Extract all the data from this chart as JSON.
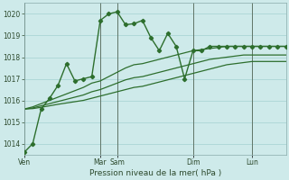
{
  "background_color": "#ceeaea",
  "grid_color": "#b0d8d8",
  "line_color": "#2d6e2d",
  "xlabel": "Pression niveau de la mer( hPa )",
  "ylim": [
    1013.5,
    1020.5
  ],
  "yticks": [
    1014,
    1015,
    1016,
    1017,
    1018,
    1019,
    1020
  ],
  "day_labels": [
    "Ven",
    "Mar",
    "Sam",
    "Dim",
    "Lun"
  ],
  "day_positions": [
    0,
    9,
    11,
    20,
    27
  ],
  "n_points": 32,
  "series": [
    [
      1013.6,
      1014.0,
      1015.6,
      1016.1,
      1016.7,
      1017.7,
      1016.9,
      1017.0,
      1017.1,
      1019.7,
      1020.0,
      1020.1,
      1019.5,
      1019.55,
      1019.7,
      1018.9,
      1018.3,
      1019.1,
      1018.5,
      1017.0,
      1018.3,
      1018.3,
      1018.5,
      1018.5,
      1018.5,
      1018.5,
      1018.5,
      1018.5,
      1018.5,
      1018.5,
      1018.5,
      1018.5
    ],
    [
      1015.6,
      1015.7,
      1015.85,
      1016.0,
      1016.15,
      1016.3,
      1016.45,
      1016.6,
      1016.8,
      1016.9,
      1017.1,
      1017.3,
      1017.5,
      1017.65,
      1017.7,
      1017.8,
      1017.9,
      1018.0,
      1018.1,
      1018.2,
      1018.3,
      1018.35,
      1018.4,
      1018.45,
      1018.5,
      1018.5,
      1018.5,
      1018.5,
      1018.5,
      1018.5,
      1018.5,
      1018.5
    ],
    [
      1015.6,
      1015.65,
      1015.75,
      1015.85,
      1015.95,
      1016.05,
      1016.15,
      1016.25,
      1016.4,
      1016.5,
      1016.65,
      1016.8,
      1016.95,
      1017.05,
      1017.1,
      1017.2,
      1017.3,
      1017.4,
      1017.5,
      1017.6,
      1017.7,
      1017.8,
      1017.9,
      1017.95,
      1018.0,
      1018.05,
      1018.1,
      1018.1,
      1018.1,
      1018.1,
      1018.1,
      1018.1
    ],
    [
      1015.6,
      1015.62,
      1015.68,
      1015.75,
      1015.82,
      1015.88,
      1015.94,
      1016.0,
      1016.1,
      1016.2,
      1016.3,
      1016.4,
      1016.5,
      1016.6,
      1016.65,
      1016.75,
      1016.85,
      1016.95,
      1017.05,
      1017.15,
      1017.25,
      1017.35,
      1017.45,
      1017.55,
      1017.65,
      1017.7,
      1017.75,
      1017.8,
      1017.8,
      1017.8,
      1017.8,
      1017.8
    ]
  ]
}
